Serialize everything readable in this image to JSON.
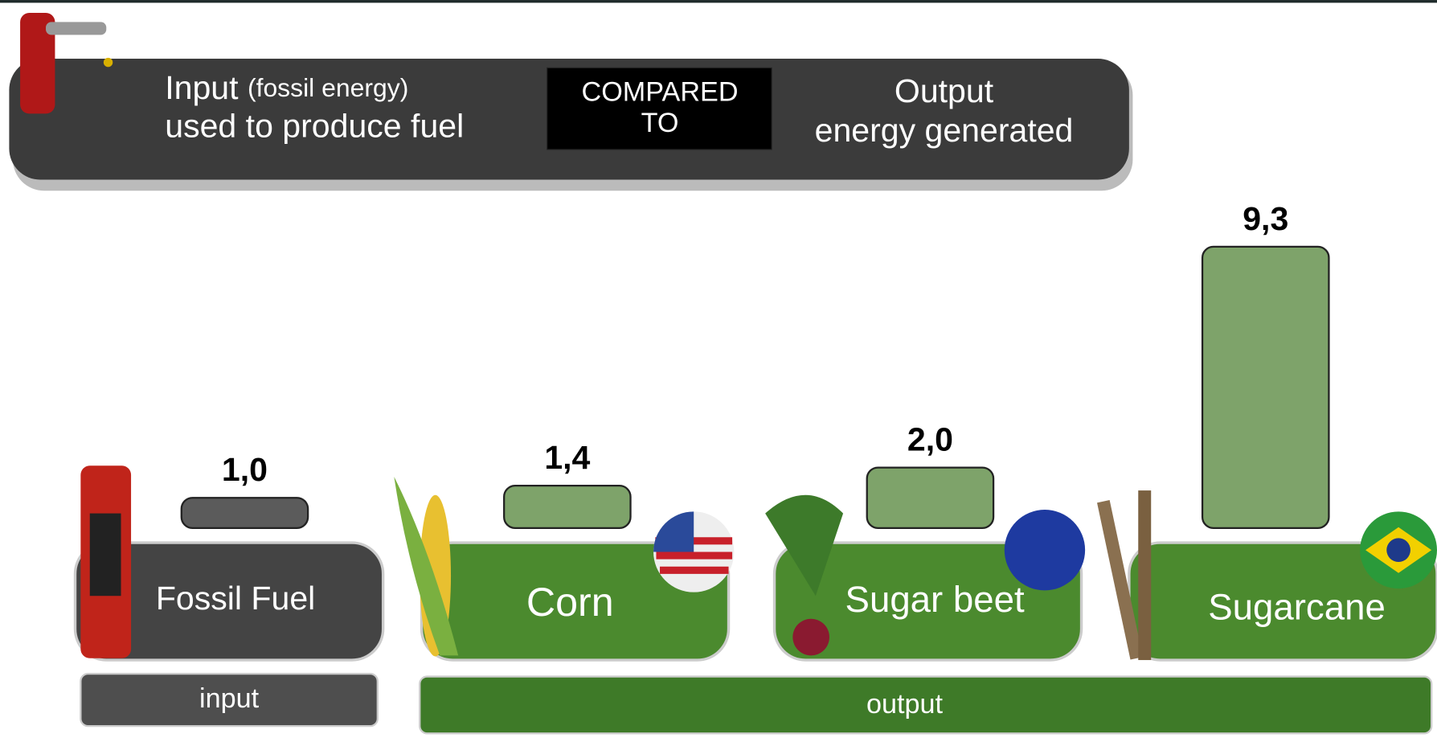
{
  "header": {
    "input_word": "Input",
    "input_note": "(fossil energy)",
    "input_line2": "used to produce fuel",
    "compared_line1": "COMPARED",
    "compared_line2": "TO",
    "output_line1": "Output",
    "output_line2": "energy generated"
  },
  "chart_data": {
    "type": "bar",
    "categories": [
      "Fossil Fuel",
      "Corn",
      "Sugar beet",
      "Sugarcane"
    ],
    "values": [
      1.0,
      1.4,
      2.0,
      9.3
    ],
    "value_labels": [
      "1,0",
      "1,4",
      "2,0",
      "9,3"
    ],
    "colors": [
      "#5b5b5b",
      "#7ea36a",
      "#7ea36a",
      "#7ea36a"
    ],
    "groups": [
      "input",
      "output"
    ]
  }
}
